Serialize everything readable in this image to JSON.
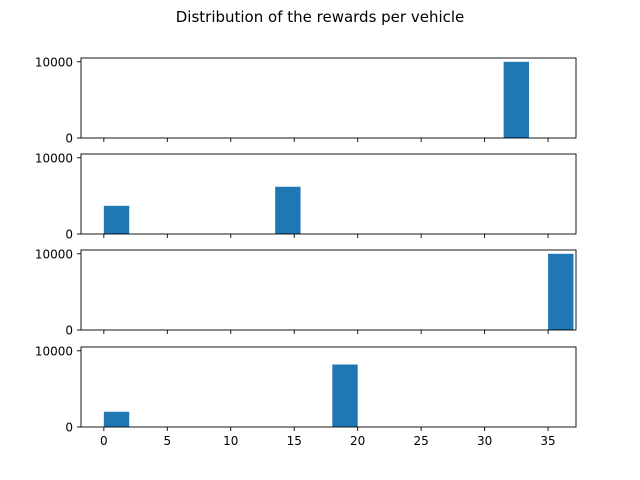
{
  "figure": {
    "title": "Distribution of the rewards per vehicle"
  },
  "style": {
    "bar_color": "#1f77b4",
    "axis_color": "#000000",
    "background": "#ffffff"
  },
  "chart_data": [
    {
      "type": "bar",
      "title": "",
      "xlabel": "",
      "ylabel": "",
      "xlim": [
        -1.8,
        37.2
      ],
      "ylim": [
        0,
        10500
      ],
      "xticks": [
        0,
        5,
        10,
        15,
        20,
        25,
        30,
        35
      ],
      "xtick_labels_visible": false,
      "yticks": [
        0,
        10000
      ],
      "ytick_labels": [
        "0",
        "10000"
      ],
      "bin_width": 2,
      "bins": [
        {
          "x_start": 31.5,
          "x_end": 33.5,
          "count": 10000
        }
      ]
    },
    {
      "type": "bar",
      "title": "",
      "xlabel": "",
      "ylabel": "",
      "xlim": [
        -1.8,
        37.2
      ],
      "ylim": [
        0,
        10500
      ],
      "xticks": [
        0,
        5,
        10,
        15,
        20,
        25,
        30,
        35
      ],
      "xtick_labels_visible": false,
      "yticks": [
        0,
        10000
      ],
      "ytick_labels": [
        "0",
        "10000"
      ],
      "bin_width": 2,
      "bins": [
        {
          "x_start": 0,
          "x_end": 2,
          "count": 3700
        },
        {
          "x_start": 13.5,
          "x_end": 15.5,
          "count": 6200
        }
      ]
    },
    {
      "type": "bar",
      "title": "",
      "xlabel": "",
      "ylabel": "",
      "xlim": [
        -1.8,
        37.2
      ],
      "ylim": [
        0,
        10500
      ],
      "xticks": [
        0,
        5,
        10,
        15,
        20,
        25,
        30,
        35
      ],
      "xtick_labels_visible": false,
      "yticks": [
        0,
        10000
      ],
      "ytick_labels": [
        "0",
        "10000"
      ],
      "bin_width": 2,
      "bins": [
        {
          "x_start": 35,
          "x_end": 37,
          "count": 10000
        }
      ]
    },
    {
      "type": "bar",
      "title": "",
      "xlabel": "",
      "ylabel": "",
      "xlim": [
        -1.8,
        37.2
      ],
      "ylim": [
        0,
        10500
      ],
      "xticks": [
        0,
        5,
        10,
        15,
        20,
        25,
        30,
        35
      ],
      "xtick_labels_visible": true,
      "xtick_labels": [
        "0",
        "5",
        "10",
        "15",
        "20",
        "25",
        "30",
        "35"
      ],
      "yticks": [
        0,
        10000
      ],
      "ytick_labels": [
        "0",
        "10000"
      ],
      "bin_width": 2,
      "bins": [
        {
          "x_start": 0,
          "x_end": 2,
          "count": 2000
        },
        {
          "x_start": 18,
          "x_end": 20,
          "count": 8200
        }
      ]
    }
  ]
}
